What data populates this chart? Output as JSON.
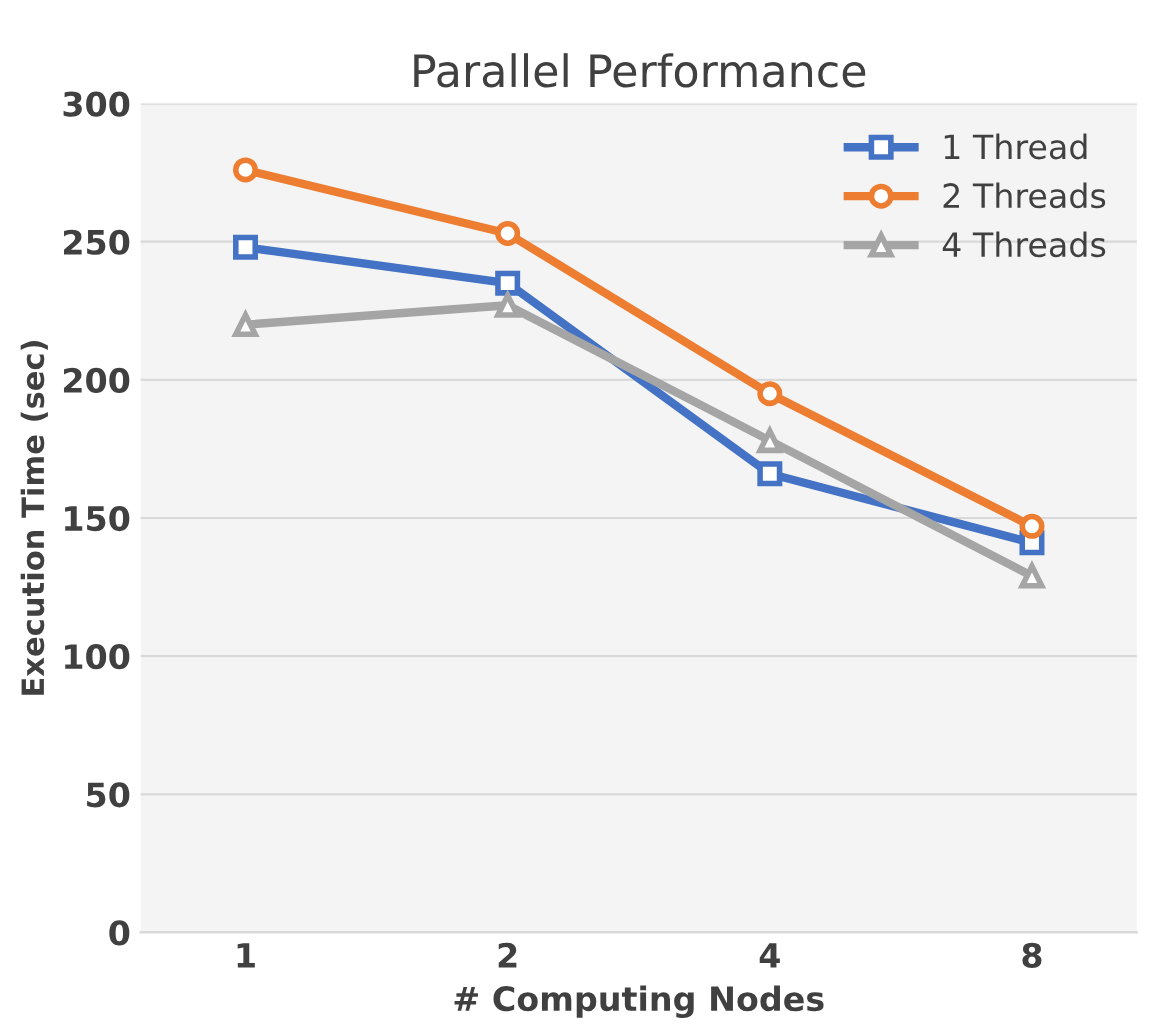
{
  "chart_data": {
    "type": "line",
    "title": "Parallel Performance",
    "xlabel": "# Computing Nodes",
    "ylabel": "Execution Time (sec)",
    "categories": [
      "1",
      "2",
      "4",
      "8"
    ],
    "series": [
      {
        "name": "1 Thread",
        "color": "#4472c4",
        "marker": "square",
        "values": [
          248,
          235,
          166,
          141
        ]
      },
      {
        "name": "2 Threads",
        "color": "#ed7d31",
        "marker": "circle",
        "values": [
          276,
          253,
          195,
          147
        ]
      },
      {
        "name": "4 Threads",
        "color": "#a5a5a5",
        "marker": "triangle",
        "values": [
          220,
          227,
          178,
          129
        ]
      }
    ],
    "ylim": [
      0,
      300
    ],
    "yticks": [
      0,
      50,
      100,
      150,
      200,
      250,
      300
    ],
    "grid": "y",
    "legend": "top right",
    "line_style": "solid"
  }
}
